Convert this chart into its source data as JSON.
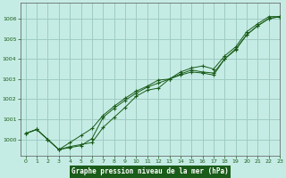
{
  "title": "Graphe pression niveau de la mer (hPa)",
  "bg_color": "#c5ece4",
  "grid_color": "#9eccc4",
  "line_color": "#1a5c1a",
  "marker_color": "#1a5c1a",
  "xlim": [
    -0.5,
    23
  ],
  "ylim": [
    999.2,
    1006.8
  ],
  "yticks": [
    1000,
    1001,
    1002,
    1003,
    1004,
    1005,
    1006
  ],
  "xticks": [
    0,
    1,
    2,
    3,
    4,
    5,
    6,
    7,
    8,
    9,
    10,
    11,
    12,
    13,
    14,
    15,
    16,
    17,
    18,
    19,
    20,
    21,
    22,
    23
  ],
  "series": [
    [
      1000.3,
      1000.5,
      1000.0,
      999.5,
      999.65,
      999.75,
      999.85,
      1000.6,
      1001.1,
      1001.6,
      1002.15,
      1002.45,
      1002.55,
      1003.0,
      1003.2,
      1003.35,
      1003.3,
      1003.2,
      1004.0,
      1004.45,
      1005.2,
      1005.65,
      1006.0,
      1006.1
    ],
    [
      1000.3,
      1000.5,
      1000.0,
      999.5,
      999.6,
      999.7,
      1000.05,
      1001.1,
      1001.55,
      1001.95,
      1002.3,
      1002.6,
      1002.8,
      1003.0,
      1003.25,
      1003.45,
      1003.35,
      1003.3,
      1004.0,
      1004.5,
      1005.2,
      1005.65,
      1006.0,
      1006.1
    ],
    [
      1000.3,
      1000.5,
      1000.0,
      999.5,
      999.85,
      1000.2,
      1000.55,
      1001.2,
      1001.65,
      1002.05,
      1002.4,
      1002.65,
      1002.95,
      1003.0,
      1003.35,
      1003.55,
      1003.65,
      1003.5,
      1004.15,
      1004.6,
      1005.35,
      1005.75,
      1006.1,
      1006.1
    ]
  ],
  "xlabel_color": "#1a5c1a",
  "xlabel_bg": "#1a5c1a",
  "tick_label_color": "#1a5c1a"
}
